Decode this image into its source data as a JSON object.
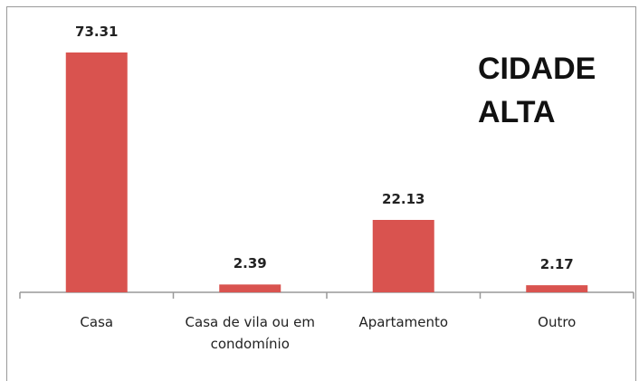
{
  "chart_data": {
    "type": "bar",
    "title": "CIDADE ALTA",
    "categories": [
      "Casa",
      "Casa de vila ou em condomínio",
      "Apartamento",
      "Outro"
    ],
    "values": [
      73.31,
      2.39,
      22.13,
      2.17
    ],
    "color": "#d9534f"
  }
}
